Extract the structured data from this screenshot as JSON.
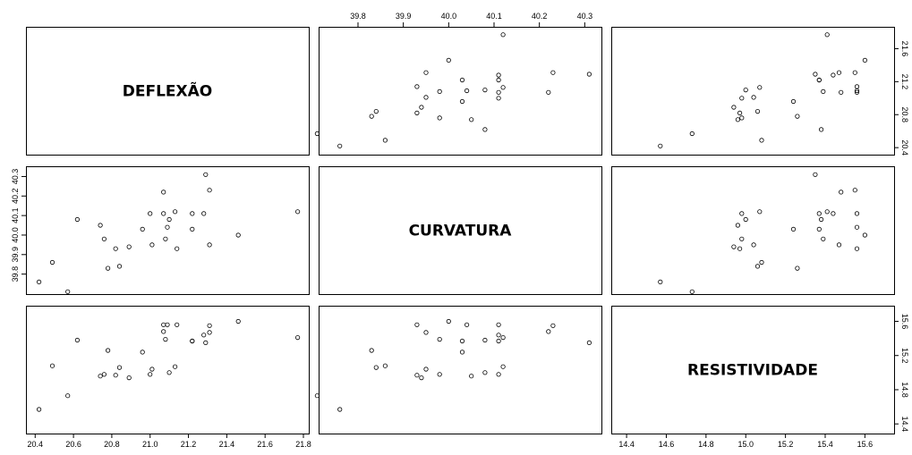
{
  "chart_data": {
    "type": "scatter",
    "variables": [
      "DEFLEXÃO",
      "CURVATURA",
      "RESISTIVIDADE"
    ],
    "observations": [
      {
        "deflexao": 20.42,
        "curvatura": 39.76,
        "resistividade": 14.57
      },
      {
        "deflexao": 20.49,
        "curvatura": 39.86,
        "resistividade": 15.08
      },
      {
        "deflexao": 20.57,
        "curvatura": 39.71,
        "resistividade": 14.73
      },
      {
        "deflexao": 20.62,
        "curvatura": 40.08,
        "resistividade": 15.38
      },
      {
        "deflexao": 20.74,
        "curvatura": 40.05,
        "resistividade": 14.96
      },
      {
        "deflexao": 20.76,
        "curvatura": 39.98,
        "resistividade": 14.98
      },
      {
        "deflexao": 20.78,
        "curvatura": 39.83,
        "resistividade": 15.26
      },
      {
        "deflexao": 20.82,
        "curvatura": 39.93,
        "resistividade": 14.97
      },
      {
        "deflexao": 20.84,
        "curvatura": 39.84,
        "resistividade": 15.06
      },
      {
        "deflexao": 20.89,
        "curvatura": 39.94,
        "resistividade": 14.94
      },
      {
        "deflexao": 20.96,
        "curvatura": 40.03,
        "resistividade": 15.24
      },
      {
        "deflexao": 21.0,
        "curvatura": 40.11,
        "resistividade": 14.98
      },
      {
        "deflexao": 21.01,
        "curvatura": 39.95,
        "resistividade": 15.04
      },
      {
        "deflexao": 21.07,
        "curvatura": 40.11,
        "resistividade": 15.56
      },
      {
        "deflexao": 21.07,
        "curvatura": 40.22,
        "resistividade": 15.48
      },
      {
        "deflexao": 21.08,
        "curvatura": 39.98,
        "resistividade": 15.39
      },
      {
        "deflexao": 21.09,
        "curvatura": 40.04,
        "resistividade": 15.56
      },
      {
        "deflexao": 21.1,
        "curvatura": 40.08,
        "resistividade": 15.0
      },
      {
        "deflexao": 21.13,
        "curvatura": 40.12,
        "resistividade": 15.07
      },
      {
        "deflexao": 21.14,
        "curvatura": 39.93,
        "resistividade": 15.56
      },
      {
        "deflexao": 21.22,
        "curvatura": 40.11,
        "resistividade": 15.37
      },
      {
        "deflexao": 21.22,
        "curvatura": 40.03,
        "resistividade": 15.37
      },
      {
        "deflexao": 21.28,
        "curvatura": 40.11,
        "resistividade": 15.44
      },
      {
        "deflexao": 21.29,
        "curvatura": 40.31,
        "resistividade": 15.35
      },
      {
        "deflexao": 21.31,
        "curvatura": 40.23,
        "resistividade": 15.55
      },
      {
        "deflexao": 21.31,
        "curvatura": 39.95,
        "resistividade": 15.47
      },
      {
        "deflexao": 21.46,
        "curvatura": 40.0,
        "resistividade": 15.6
      },
      {
        "deflexao": 21.77,
        "curvatura": 40.12,
        "resistividade": 15.41
      }
    ],
    "ranges": {
      "deflexao": [
        20.38,
        21.8
      ],
      "curvatura": [
        39.725,
        40.325
      ],
      "resistividade": [
        14.35,
        15.72
      ]
    },
    "ticks": {
      "deflexao": [
        "20.4",
        "20.6",
        "20.8",
        "21.0",
        "21.2",
        "21.4",
        "21.6",
        "21.8"
      ],
      "curvatura": [
        "39.8",
        "39.9",
        "40.0",
        "40.1",
        "40.2",
        "40.3"
      ],
      "resistividade": [
        "14.4",
        "14.6",
        "14.8",
        "15.0",
        "15.2",
        "15.4",
        "15.6"
      ]
    },
    "axis_ticks": {
      "bottom_col1": {
        "var": "deflexao",
        "ticks": [
          "20.4",
          "20.6",
          "20.8",
          "21.0",
          "21.2",
          "21.4",
          "21.6",
          "21.8"
        ]
      },
      "top_col2": {
        "var": "curvatura",
        "ticks": [
          "39.8",
          "39.9",
          "40.0",
          "40.1",
          "40.2",
          "40.3"
        ]
      },
      "bottom_col3": {
        "var": "resistividade",
        "ticks": [
          "14.4",
          "14.6",
          "14.8",
          "15.0",
          "15.2",
          "15.4",
          "15.6"
        ]
      },
      "right_row1": {
        "var": "deflexao",
        "ticks": [
          "20.4",
          "20.8",
          "21.2",
          "21.6"
        ]
      },
      "left_row2": {
        "var": "curvatura",
        "ticks": [
          "39.8",
          "39.9",
          "40.0",
          "40.1",
          "40.2",
          "40.3"
        ]
      },
      "right_row3": {
        "var": "resistividade",
        "ticks": [
          "14.4",
          "14.8",
          "15.2",
          "15.6"
        ]
      }
    },
    "grid": false,
    "legend": "none",
    "point_shape": "open-circle",
    "colors": {
      "points": "#000000",
      "frame": "#000000",
      "background": "#ffffff"
    }
  }
}
